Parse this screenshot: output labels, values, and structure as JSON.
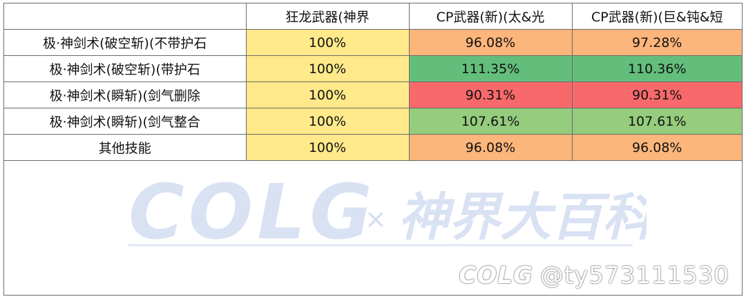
{
  "table": {
    "headers": [
      "",
      "狂龙武器(神界",
      "CP武器(新)(太&光",
      "CP武器(新)(巨&钝&短"
    ],
    "rows": [
      {
        "label": "极·神剑术(破空斩)(不带护石",
        "values": [
          "100%",
          "96.08%",
          "97.28%"
        ],
        "colors": [
          "#ffe98a",
          "#fcb57a",
          "#fcb57a"
        ]
      },
      {
        "label": "极·神剑术(破空斩)(带护石",
        "values": [
          "100%",
          "111.35%",
          "110.36%"
        ],
        "colors": [
          "#ffe98a",
          "#63be7b",
          "#63be7b"
        ]
      },
      {
        "label": "极·神剑术(瞬斩)(剑气删除",
        "values": [
          "100%",
          "90.31%",
          "90.31%"
        ],
        "colors": [
          "#ffe98a",
          "#f8696b",
          "#f8696b"
        ]
      },
      {
        "label": "极·神剑术(瞬斩)(剑气整合",
        "values": [
          "100%",
          "107.61%",
          "107.61%"
        ],
        "colors": [
          "#ffe98a",
          "#95cc7d",
          "#95cc7d"
        ]
      },
      {
        "label": "其他技能",
        "values": [
          "100%",
          "96.08%",
          "96.08%"
        ],
        "colors": [
          "#ffe98a",
          "#fcb57a",
          "#fcb57a"
        ]
      }
    ]
  },
  "watermark": {
    "main_text": "COLG",
    "cross": "×",
    "sub_text": "神界大百科",
    "signature_logo": "COLG",
    "signature_user": "@ty573111530",
    "color": "#d3ddf1"
  }
}
